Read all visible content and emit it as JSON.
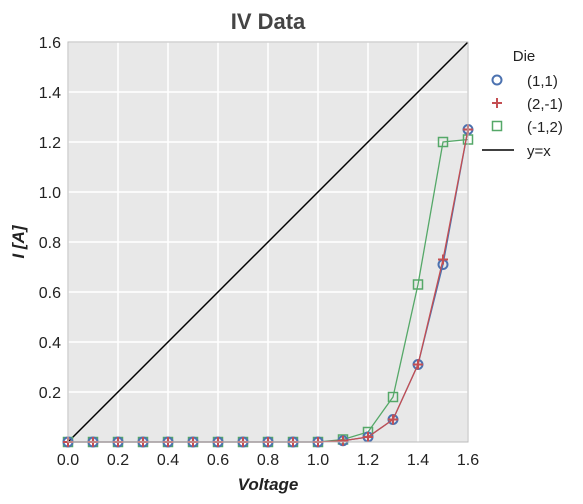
{
  "chart_data": {
    "type": "line",
    "title": "IV Data",
    "xlabel": "Voltage",
    "ylabel": "I [A]",
    "xlim": [
      0.0,
      1.6
    ],
    "ylim": [
      0.0,
      1.6
    ],
    "xticks": [
      "0.0",
      "0.2",
      "0.4",
      "0.6",
      "0.8",
      "1.0",
      "1.2",
      "1.4",
      "1.6"
    ],
    "yticks": [
      "0.2",
      "0.4",
      "0.6",
      "0.8",
      "1.0",
      "1.2",
      "1.4",
      "1.6"
    ],
    "grid": true,
    "legend_title": "Die",
    "legend_position": "outside-right",
    "x": [
      0.0,
      0.1,
      0.2,
      0.3,
      0.4,
      0.5,
      0.6,
      0.7,
      0.8,
      0.9,
      1.0,
      1.1,
      1.2,
      1.3,
      1.4,
      1.5,
      1.6
    ],
    "series": [
      {
        "name": "(1,1)",
        "marker": "circle",
        "color": "#4c72b0",
        "values": [
          0,
          0,
          0,
          0,
          0,
          0,
          0,
          0,
          0,
          0,
          0,
          0.005,
          0.02,
          0.09,
          0.31,
          0.71,
          1.25
        ]
      },
      {
        "name": "(2,-1)",
        "marker": "plus",
        "color": "#c44e52",
        "values": [
          0,
          0,
          0,
          0,
          0,
          0,
          0,
          0,
          0,
          0,
          0,
          0.005,
          0.02,
          0.09,
          0.31,
          0.73,
          1.25
        ]
      },
      {
        "name": "(-1,2)",
        "marker": "square",
        "color": "#55a868",
        "values": [
          0,
          0,
          0,
          0,
          0,
          0,
          0,
          0,
          0,
          0,
          0,
          0.01,
          0.04,
          0.18,
          0.63,
          1.2,
          1.21
        ]
      }
    ],
    "reference_line": {
      "name": "y=x",
      "color": "#000000",
      "x": [
        0.0,
        1.6
      ],
      "y": [
        0.0,
        1.6
      ]
    }
  },
  "colors": {
    "plot_background": "#e8e8e8",
    "grid": "#ffffff"
  }
}
